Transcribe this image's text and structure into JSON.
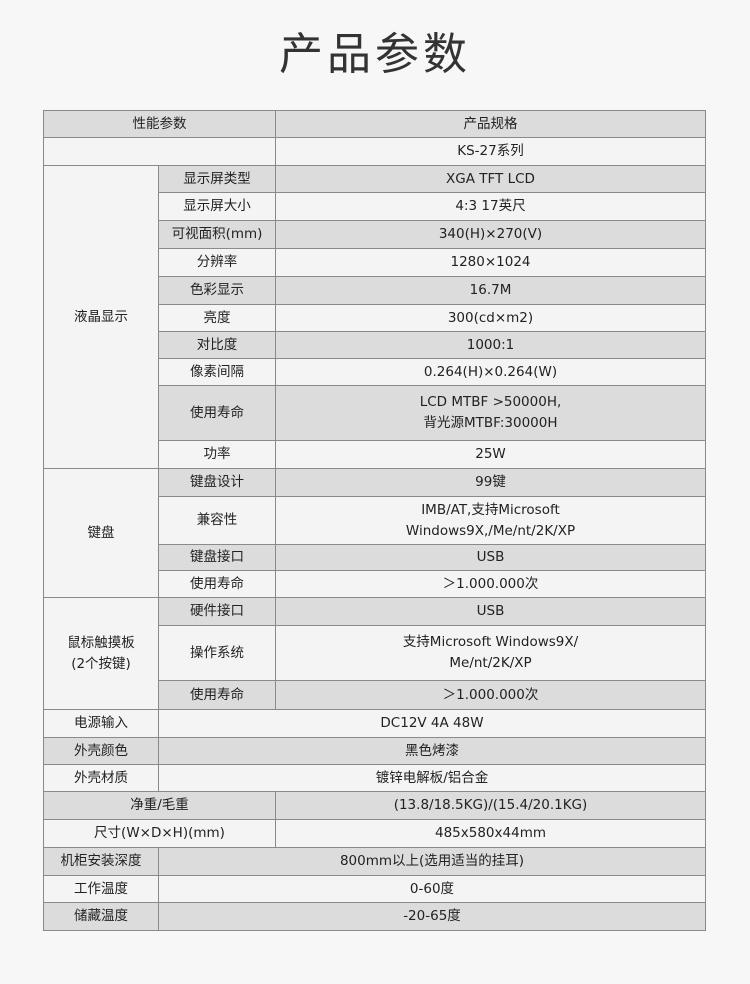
{
  "title": "产品参数",
  "header": {
    "param": "性能参数",
    "spec": "产品规格"
  },
  "model": "KS-27系列",
  "groups": [
    {
      "label": "液晶显示",
      "items": [
        {
          "label": "显示屏类型",
          "value": "XGA  TFT  LCD"
        },
        {
          "label": "显示屏大小",
          "value": "4:3  17英尺"
        },
        {
          "label": "可视面积(mm)",
          "value": "340(H)×270(V)"
        },
        {
          "label": "分辨率",
          "value": "1280×1024"
        },
        {
          "label": "色彩显示",
          "value": "16.7M"
        },
        {
          "label": "亮度",
          "value": "300(cd×m2)"
        },
        {
          "label": "对比度",
          "value": "1000:1"
        },
        {
          "label": "像素间隔",
          "value": "0.264(H)×0.264(W)"
        },
        {
          "label": "使用寿命",
          "value": "LCD MTBF >50000H,\n背光源MTBF:30000H"
        },
        {
          "label": "功率",
          "value": "25W"
        }
      ]
    },
    {
      "label": "键盘",
      "items": [
        {
          "label": "键盘设计",
          "value": "99键"
        },
        {
          "label": "兼容性",
          "value": "IMB/AT,支持Microsoft\nWindows9X,/Me/nt/2K/XP"
        },
        {
          "label": "键盘接口",
          "value": "USB"
        },
        {
          "label": "使用寿命",
          "value": "＞1.000.000次"
        }
      ]
    },
    {
      "label": "鼠标触摸板\n(2个按键)",
      "items": [
        {
          "label": "硬件接口",
          "value": "USB"
        },
        {
          "label": "操作系统",
          "value": "支持Microsoft  Windows9X/\nMe/nt/2K/XP"
        },
        {
          "label": "使用寿命",
          "value": "＞1.000.000次"
        }
      ]
    }
  ],
  "rows_a": [
    {
      "label": "电源输入",
      "value": "DC12V  4A  48W"
    },
    {
      "label": "外壳颜色",
      "value": "黑色烤漆"
    },
    {
      "label": "外壳材质",
      "value": "镀锌电解板/铝合金"
    }
  ],
  "rows_b": [
    {
      "label": "净重/毛重",
      "value": "(13.8/18.5KG)/(15.4/20.1KG)"
    },
    {
      "label": "尺寸(W×D×H)(mm)",
      "value": "485x580x44mm"
    }
  ],
  "rows_c": [
    {
      "label": "机柜安装深度",
      "value": "800mm以上(选用适当的挂耳)"
    },
    {
      "label": "工作温度",
      "value": "0-60度"
    },
    {
      "label": "储藏温度",
      "value": "-20-65度"
    }
  ]
}
